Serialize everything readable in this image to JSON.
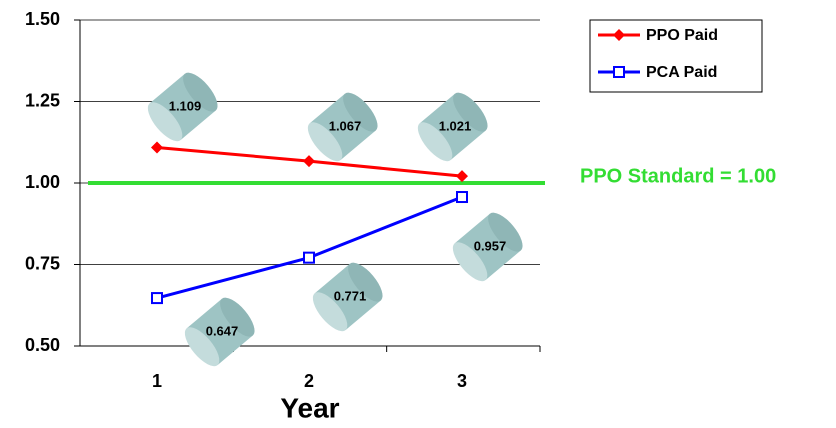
{
  "chart_data": {
    "type": "line",
    "x_label": "Year",
    "categories": [
      "1",
      "2",
      "3"
    ],
    "series": [
      {
        "name": "PPO Paid",
        "color": "#ff0000",
        "marker": "diamond",
        "values": [
          1.109,
          1.067,
          1.021
        ]
      },
      {
        "name": "PCA Paid",
        "color": "#0000ff",
        "marker": "square",
        "values": [
          0.647,
          0.771,
          0.957
        ]
      }
    ],
    "ylim": [
      0.5,
      1.5
    ],
    "yticks": [
      {
        "value": 0.5,
        "label": "0.50"
      },
      {
        "value": 0.75,
        "label": "0.75"
      },
      {
        "value": 1,
        "label": "1.00"
      },
      {
        "value": 1.25,
        "label": "1.25"
      },
      {
        "value": 1.5,
        "label": "1.50"
      }
    ],
    "grid": true,
    "legend": "upper right",
    "reference_line": {
      "value": 1,
      "label": "PPO Standard = 1.00",
      "color": "#33dd33"
    }
  }
}
